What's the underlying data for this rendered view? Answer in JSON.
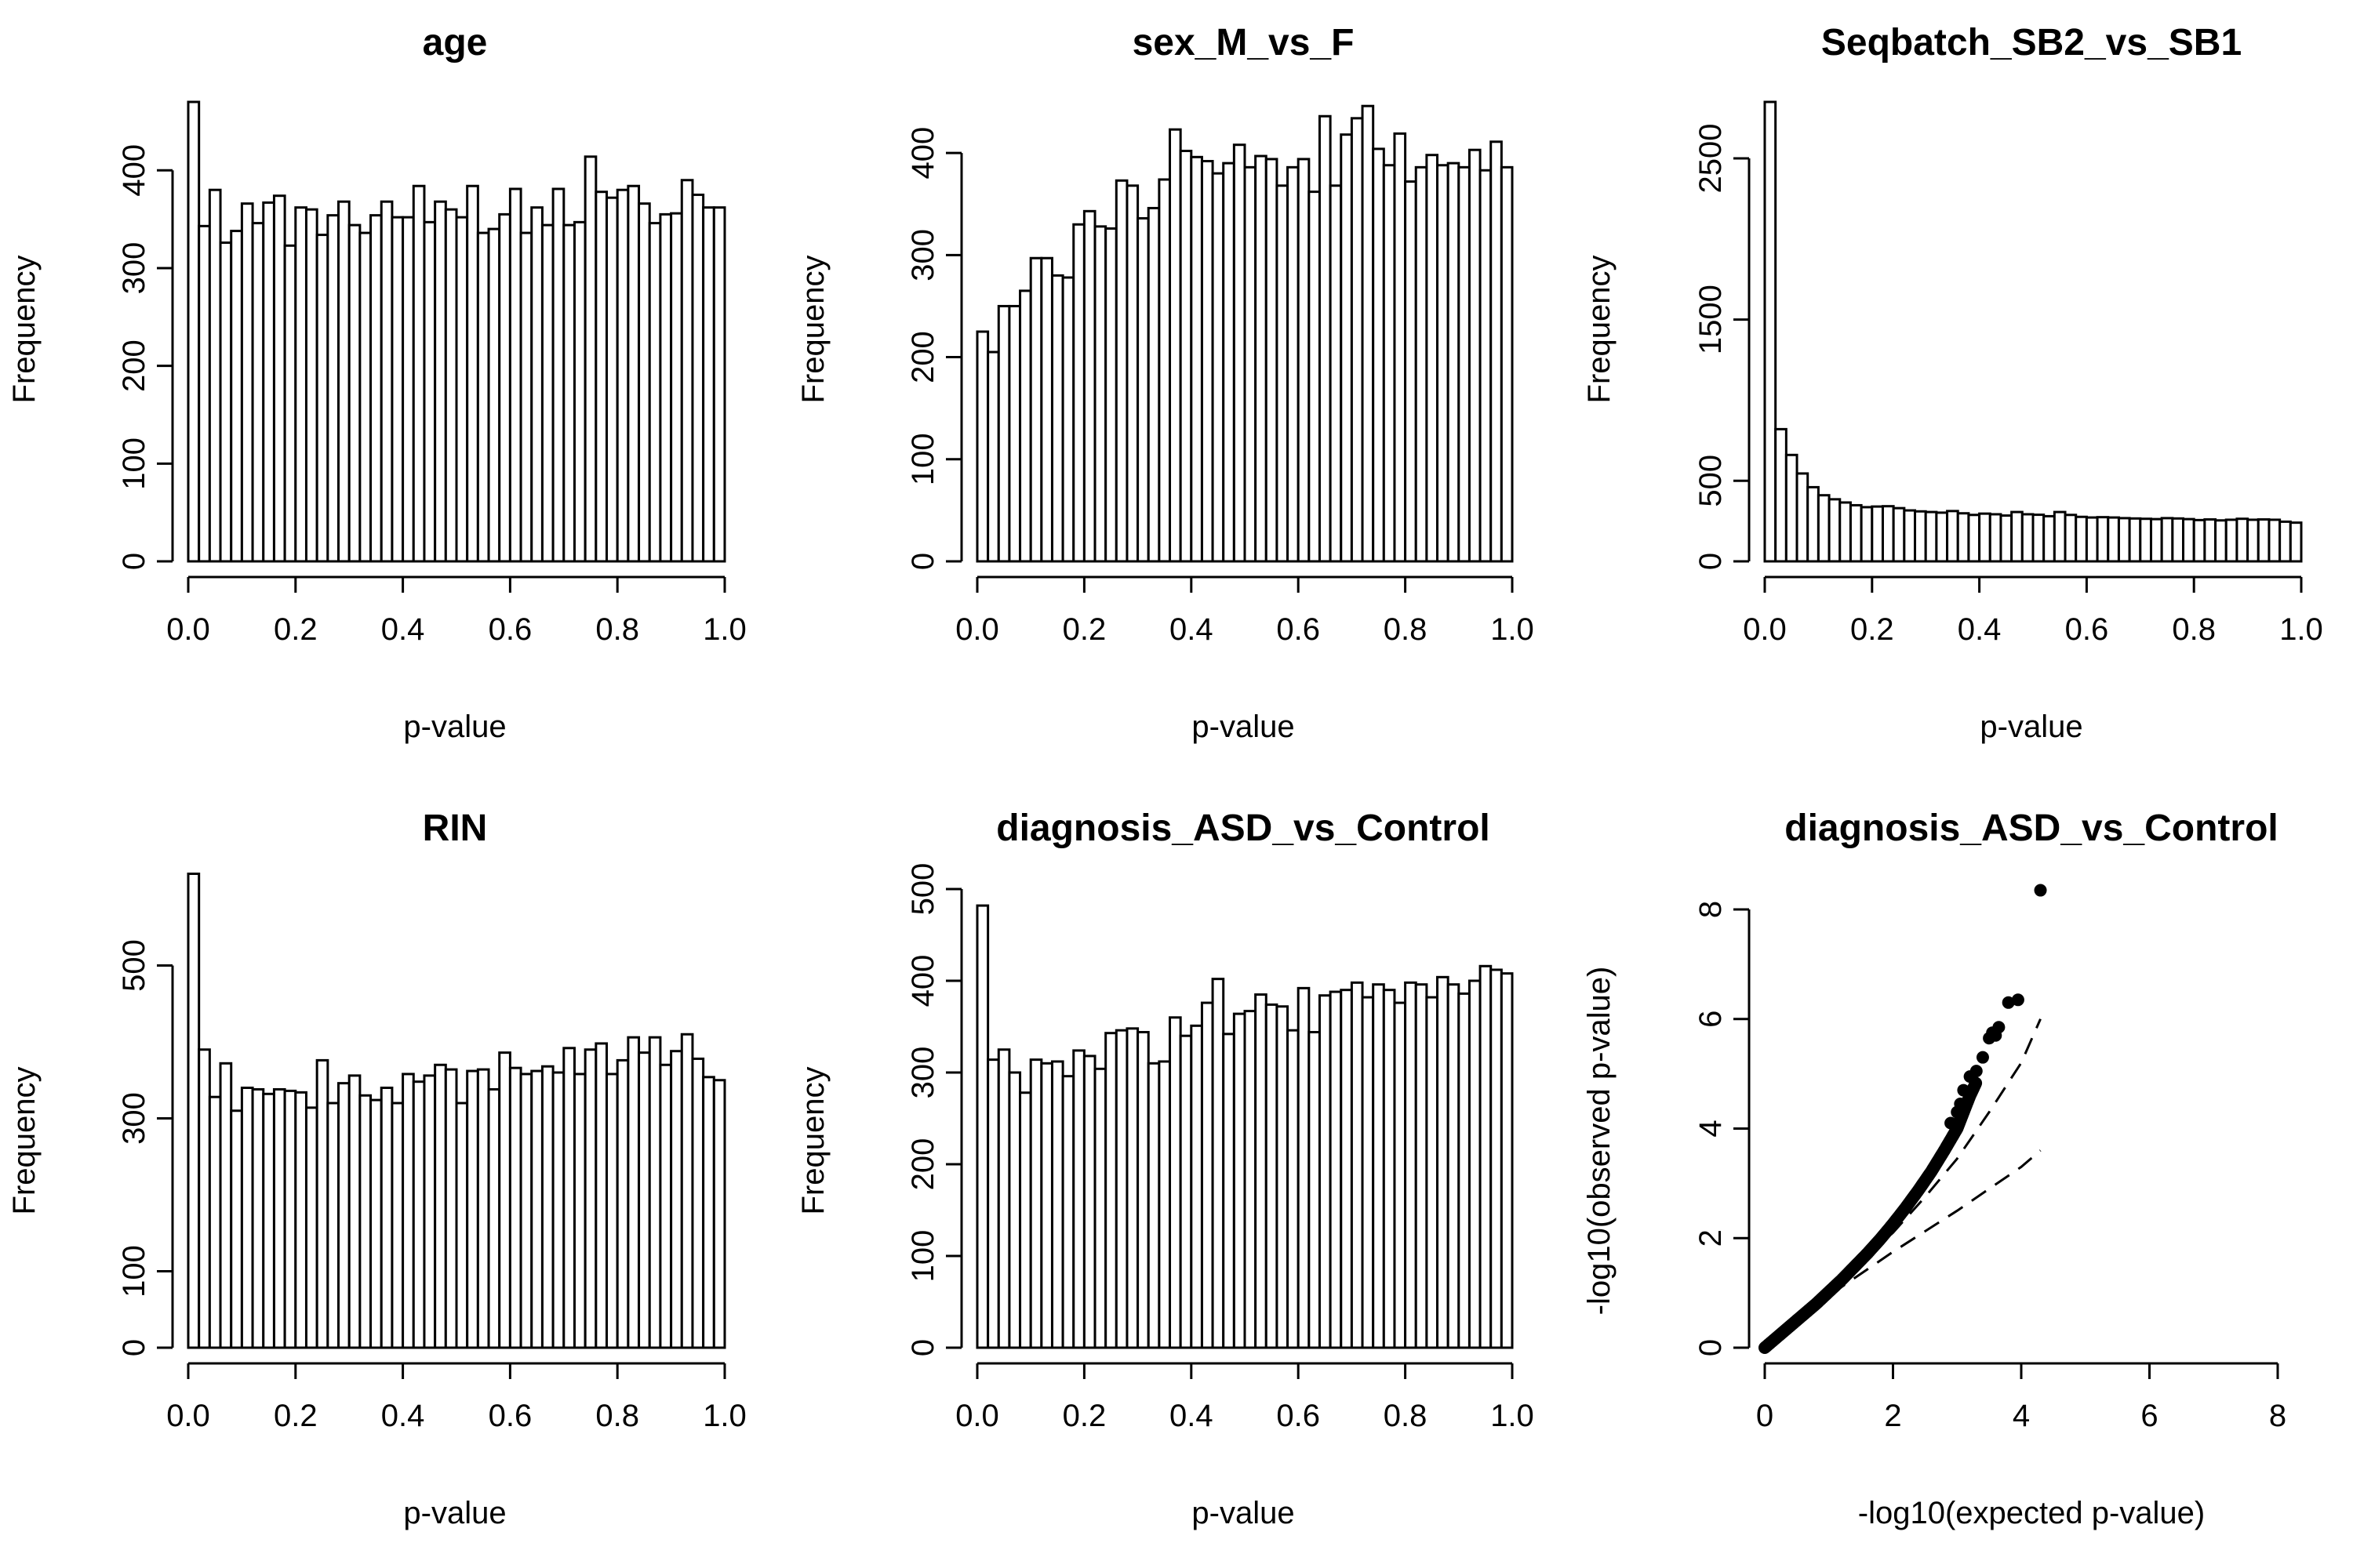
{
  "chart_data": [
    {
      "type": "bar",
      "title": "age",
      "xlabel": "p-value",
      "ylabel": "Frequency",
      "xlim": [
        0,
        1
      ],
      "ylim": [
        0,
        470
      ],
      "x_ticks": [
        "0.0",
        "0.2",
        "0.4",
        "0.6",
        "0.8",
        "1.0"
      ],
      "y_ticks": [
        "0",
        "100",
        "200",
        "300",
        "400"
      ],
      "bin_width": 0.02,
      "values": [
        470,
        343,
        380,
        326,
        338,
        366,
        346,
        367,
        374,
        323,
        362,
        360,
        334,
        354,
        368,
        344,
        336,
        354,
        368,
        352,
        352,
        384,
        347,
        368,
        360,
        352,
        384,
        336,
        340,
        355,
        381,
        336,
        362,
        344,
        381,
        344,
        347,
        414,
        378,
        372,
        380,
        384,
        366,
        346,
        355,
        356,
        390,
        375,
        362,
        362
      ]
    },
    {
      "type": "bar",
      "title": "sex_M_vs_F",
      "xlabel": "p-value",
      "ylabel": "Frequency",
      "xlim": [
        0,
        1
      ],
      "ylim": [
        0,
        450
      ],
      "x_ticks": [
        "0.0",
        "0.2",
        "0.4",
        "0.6",
        "0.8",
        "1.0"
      ],
      "y_ticks": [
        "0",
        "100",
        "200",
        "300",
        "400"
      ],
      "bin_width": 0.02,
      "values": [
        225,
        205,
        250,
        250,
        265,
        297,
        297,
        280,
        278,
        330,
        343,
        328,
        326,
        373,
        368,
        336,
        346,
        374,
        423,
        402,
        396,
        392,
        380,
        390,
        408,
        386,
        397,
        394,
        368,
        386,
        394,
        362,
        436,
        368,
        418,
        434,
        446,
        404,
        388,
        419,
        372,
        386,
        398,
        388,
        390,
        386,
        403,
        383,
        411,
        386
      ]
    },
    {
      "type": "bar",
      "title": "Seqbatch_SB2_vs_SB1",
      "xlabel": "p-value",
      "ylabel": "Frequency",
      "xlim": [
        0,
        1
      ],
      "ylim": [
        0,
        2850
      ],
      "x_ticks": [
        "0.0",
        "0.2",
        "0.4",
        "0.6",
        "0.8",
        "1.0"
      ],
      "y_ticks": [
        "0",
        "500",
        "1500",
        "2500"
      ],
      "bin_width": 0.02,
      "values": [
        2850,
        820,
        660,
        545,
        460,
        410,
        385,
        365,
        348,
        336,
        340,
        342,
        330,
        316,
        310,
        306,
        302,
        312,
        298,
        288,
        296,
        292,
        284,
        306,
        292,
        289,
        280,
        306,
        288,
        276,
        272,
        274,
        272,
        268,
        266,
        264,
        262,
        268,
        266,
        262,
        256,
        260,
        254,
        258,
        264,
        258,
        260,
        258,
        246,
        240
      ]
    },
    {
      "type": "bar",
      "title": "RIN",
      "xlabel": "p-value",
      "ylabel": "Frequency",
      "xlim": [
        0,
        1
      ],
      "ylim": [
        0,
        600
      ],
      "x_ticks": [
        "0.0",
        "0.2",
        "0.4",
        "0.6",
        "0.8",
        "1.0"
      ],
      "y_ticks": [
        "0",
        "100",
        "300",
        "500"
      ],
      "bin_width": 0.02,
      "values": [
        620,
        390,
        328,
        372,
        310,
        340,
        338,
        332,
        338,
        336,
        334,
        314,
        376,
        320,
        346,
        356,
        330,
        324,
        340,
        320,
        358,
        348,
        356,
        370,
        364,
        320,
        362,
        364,
        338,
        386,
        366,
        358,
        362,
        368,
        360,
        392,
        358,
        390,
        398,
        358,
        376,
        406,
        386,
        406,
        370,
        388,
        410,
        378,
        354,
        350
      ]
    },
    {
      "type": "bar",
      "title": "diagnosis_ASD_vs_Control",
      "xlabel": "p-value",
      "ylabel": "Frequency",
      "xlim": [
        0,
        1
      ],
      "ylim": [
        0,
        500
      ],
      "x_ticks": [
        "0.0",
        "0.2",
        "0.4",
        "0.6",
        "0.8",
        "1.0"
      ],
      "y_ticks": [
        "0",
        "100",
        "200",
        "300",
        "400",
        "500"
      ],
      "bin_width": 0.02,
      "values": [
        482,
        314,
        325,
        300,
        278,
        314,
        310,
        312,
        296,
        324,
        318,
        304,
        343,
        346,
        348,
        344,
        310,
        312,
        360,
        340,
        351,
        376,
        402,
        342,
        364,
        367,
        385,
        374,
        372,
        346,
        392,
        344,
        384,
        388,
        390,
        398,
        382,
        396,
        390,
        376,
        398,
        396,
        382,
        404,
        396,
        386,
        400,
        416,
        412,
        408
      ]
    },
    {
      "type": "scatter",
      "title": "diagnosis_ASD_vs_Control",
      "xlabel": "-log10(expected p-value)",
      "ylabel": "-log10(observed p-value)",
      "xlim": [
        0,
        8
      ],
      "ylim": [
        0,
        8
      ],
      "x_ticks": [
        "0",
        "2",
        "4",
        "6",
        "8"
      ],
      "y_ticks": [
        "0",
        "2",
        "4",
        "6",
        "8"
      ],
      "qq_curve": [
        [
          0,
          0
        ],
        [
          0.2,
          0.2
        ],
        [
          0.4,
          0.4
        ],
        [
          0.6,
          0.6
        ],
        [
          0.8,
          0.8
        ],
        [
          1.0,
          1.02
        ],
        [
          1.2,
          1.24
        ],
        [
          1.4,
          1.48
        ],
        [
          1.6,
          1.72
        ],
        [
          1.8,
          1.98
        ],
        [
          2.0,
          2.26
        ],
        [
          2.2,
          2.56
        ],
        [
          2.4,
          2.88
        ],
        [
          2.6,
          3.22
        ],
        [
          2.8,
          3.6
        ],
        [
          3.0,
          4.0
        ],
        [
          3.1,
          4.3
        ],
        [
          3.2,
          4.6
        ],
        [
          3.3,
          4.85
        ]
      ],
      "top_points": [
        [
          2.9,
          4.1
        ],
        [
          3.0,
          4.3
        ],
        [
          3.05,
          4.45
        ],
        [
          3.1,
          4.7
        ],
        [
          3.2,
          4.95
        ],
        [
          3.3,
          5.05
        ],
        [
          3.4,
          5.3
        ],
        [
          3.5,
          5.65
        ],
        [
          3.55,
          5.75
        ],
        [
          3.65,
          5.85
        ],
        [
          3.6,
          5.7
        ],
        [
          3.8,
          6.3
        ],
        [
          3.95,
          6.35
        ],
        [
          4.3,
          8.35
        ]
      ],
      "reference_lines": [
        {
          "x": [
            0,
            1,
            2,
            3,
            4,
            4.3
          ],
          "y": [
            0,
            0.95,
            1.75,
            2.5,
            3.3,
            3.6
          ]
        },
        {
          "x": [
            0,
            1,
            2,
            2.5,
            3,
            3.5,
            4,
            4.3
          ],
          "y": [
            0,
            1.02,
            2.1,
            2.75,
            3.45,
            4.3,
            5.2,
            6.0
          ]
        }
      ]
    }
  ]
}
